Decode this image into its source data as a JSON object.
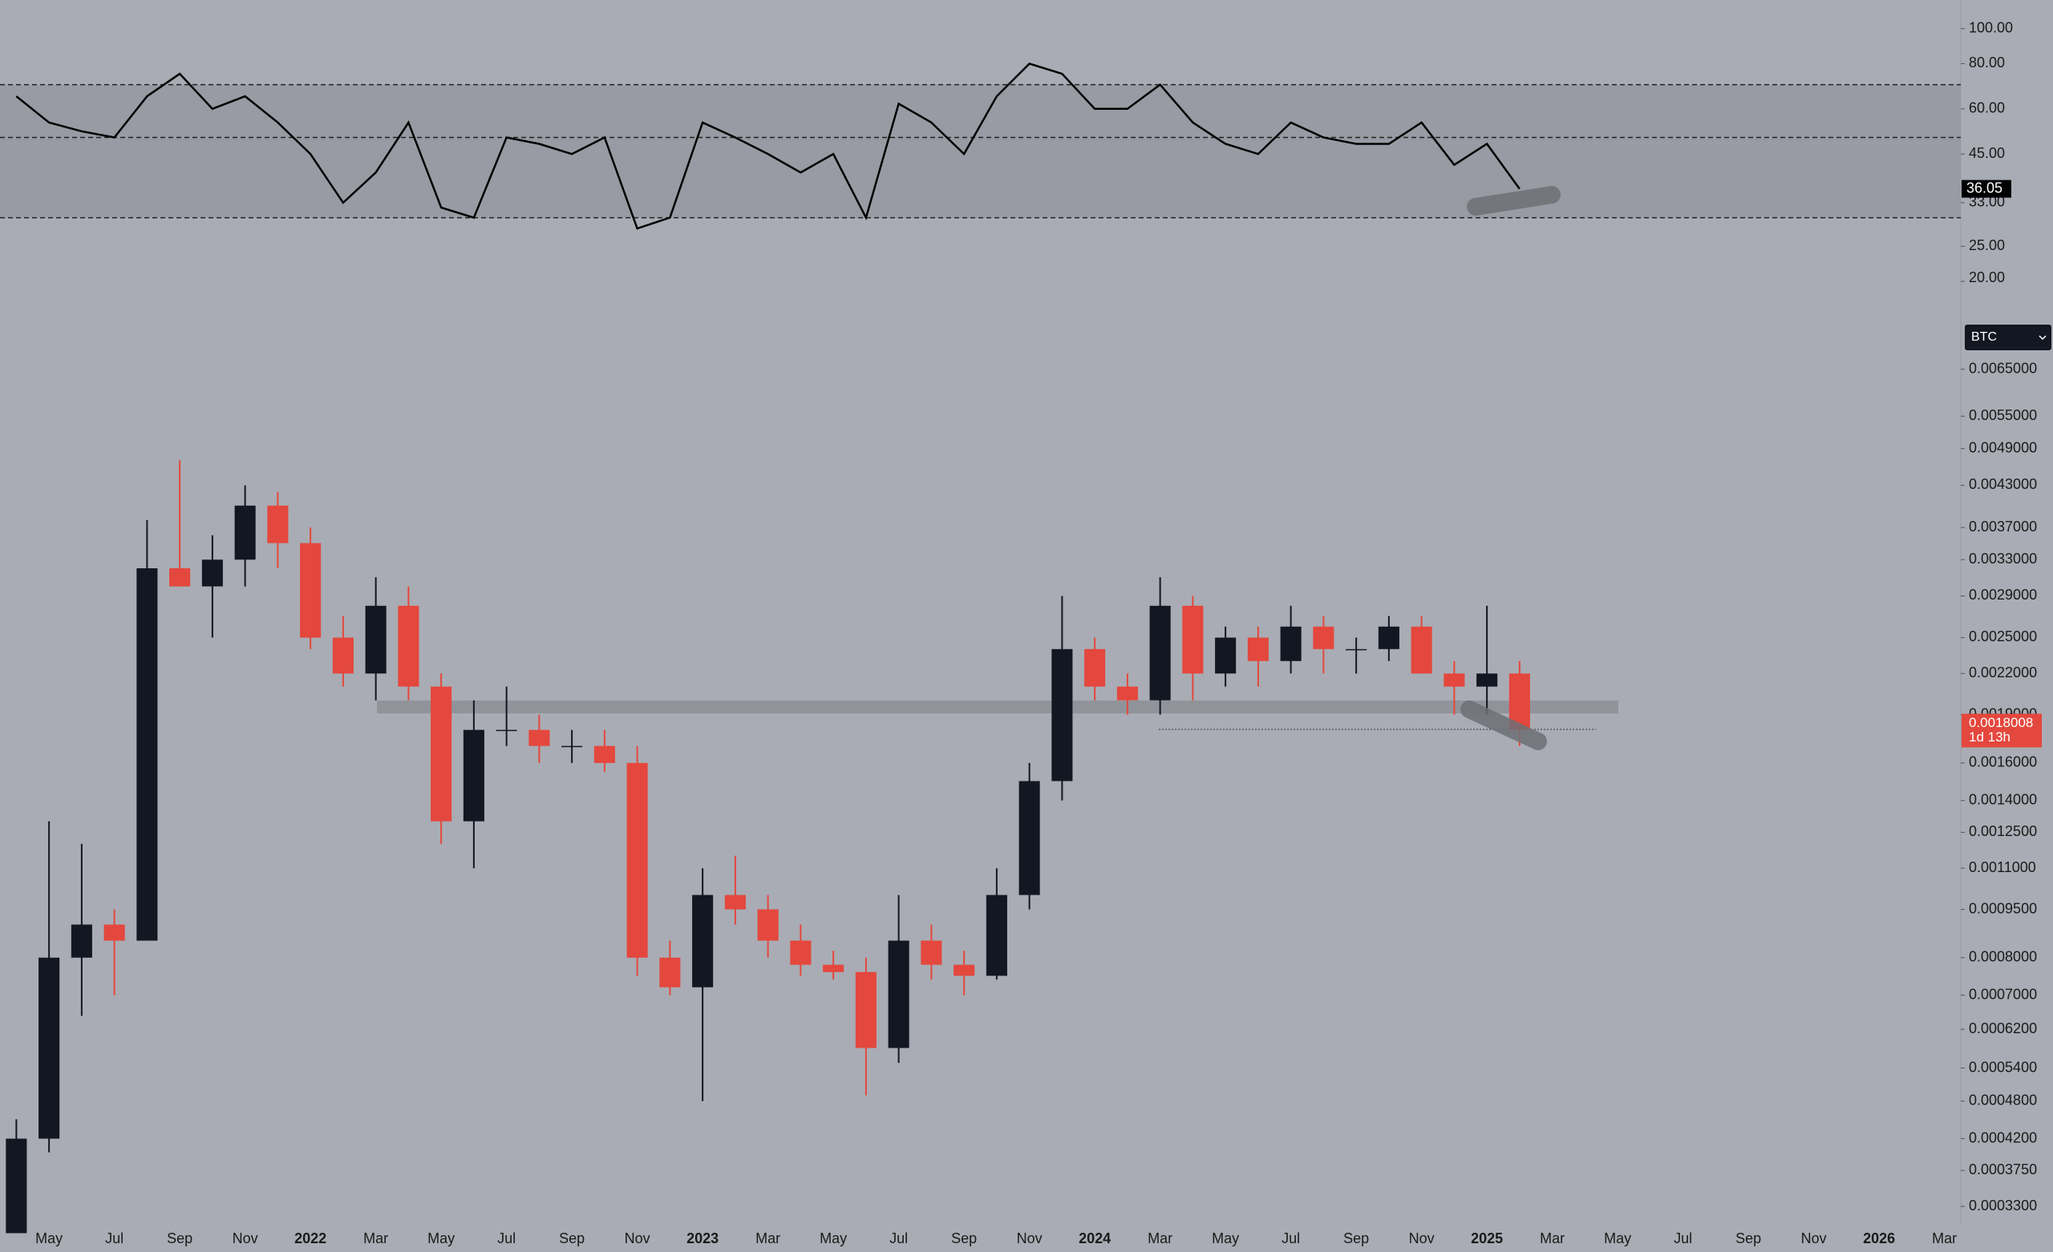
{
  "chart_data": [
    {
      "type": "line",
      "scale": "log",
      "color": "#000000",
      "band_color": "#989ba3",
      "ylim": [
        20,
        120
      ],
      "yticks": [
        {
          "value": 100,
          "label": "100.00"
        },
        {
          "value": 80,
          "label": "80.00"
        },
        {
          "value": 60,
          "label": "60.00"
        },
        {
          "value": 45,
          "label": "45.00"
        },
        {
          "value": 33,
          "label": "33.00"
        },
        {
          "value": 25,
          "label": "25.00"
        },
        {
          "value": 20,
          "label": "20.00"
        }
      ],
      "levels": [
        30,
        50,
        70
      ],
      "values": [
        65,
        55,
        52,
        50,
        65,
        75,
        60,
        65,
        55,
        45,
        33,
        40,
        55,
        32,
        30,
        50,
        48,
        45,
        50,
        28,
        30,
        55,
        50,
        45,
        40,
        45,
        30,
        62,
        55,
        45,
        65,
        80,
        75,
        60,
        60,
        70,
        55,
        48,
        45,
        55,
        50,
        48,
        48,
        55,
        42,
        48,
        36.05,
        null,
        null,
        null,
        null,
        null,
        null,
        null,
        null,
        null,
        null,
        null,
        null,
        null
      ]
    },
    {
      "type": "candlestick",
      "scale": "log",
      "up_color": "#131722",
      "down_color": "#e4473d",
      "symbol": "BTC",
      "countdown": "1d 13h",
      "ylim": [
        0.00031,
        0.0083
      ],
      "yticks": [
        {
          "value": 0.0065,
          "label": "0.0065000"
        },
        {
          "value": 0.0055,
          "label": "0.0055000"
        },
        {
          "value": 0.0049,
          "label": "0.0049000"
        },
        {
          "value": 0.0043,
          "label": "0.0043000"
        },
        {
          "value": 0.0037,
          "label": "0.0037000"
        },
        {
          "value": 0.0033,
          "label": "0.0033000"
        },
        {
          "value": 0.0029,
          "label": "0.0029000"
        },
        {
          "value": 0.0025,
          "label": "0.0025000"
        },
        {
          "value": 0.0022,
          "label": "0.0022000"
        },
        {
          "value": 0.0019,
          "label": "0.0019000"
        },
        {
          "value": 0.0016,
          "label": "0.0016000"
        },
        {
          "value": 0.0014,
          "label": "0.0014000"
        },
        {
          "value": 0.00125,
          "label": "0.0012500"
        },
        {
          "value": 0.0011,
          "label": "0.0011000"
        },
        {
          "value": 0.00095,
          "label": "0.0009500"
        },
        {
          "value": 0.0008,
          "label": "0.0008000"
        },
        {
          "value": 0.0007,
          "label": "0.0007000"
        },
        {
          "value": 0.00062,
          "label": "0.0006200"
        },
        {
          "value": 0.00054,
          "label": "0.0005400"
        },
        {
          "value": 0.00048,
          "label": "0.0004800"
        },
        {
          "value": 0.00042,
          "label": "0.0004200"
        },
        {
          "value": 0.000375,
          "label": "0.0003750"
        },
        {
          "value": 0.00033,
          "label": "0.0003300"
        }
      ],
      "categories": [
        null,
        "May",
        null,
        "Jul",
        null,
        "Sep",
        null,
        "Nov",
        null,
        "2022",
        null,
        "Mar",
        null,
        "May",
        null,
        "Jul",
        null,
        "Sep",
        null,
        "Nov",
        null,
        "2023",
        null,
        "Mar",
        null,
        "May",
        null,
        "Jul",
        null,
        "Sep",
        null,
        "Nov",
        null,
        "2024",
        null,
        "Mar",
        null,
        "May",
        null,
        "Jul",
        null,
        "Sep",
        null,
        "Nov",
        null,
        "2025",
        null,
        "Mar",
        null,
        "May",
        null,
        "Jul",
        null,
        "Sep",
        null,
        "Nov",
        null,
        "2026",
        null,
        "Mar"
      ],
      "open": [
        0.0003,
        0.00042,
        0.0008,
        0.0009,
        0.00085,
        0.0032,
        0.003,
        0.0033,
        0.004,
        0.0035,
        0.0025,
        0.0022,
        0.0028,
        0.0021,
        0.0013,
        0.0018,
        0.0018,
        0.0017,
        0.0017,
        0.0016,
        0.0008,
        0.00072,
        0.001,
        0.00095,
        0.00085,
        0.00078,
        0.00076,
        0.00058,
        0.00085,
        0.00078,
        0.00075,
        0.001,
        0.0015,
        0.0024,
        0.0021,
        0.002,
        0.0028,
        0.0022,
        0.0025,
        0.0023,
        0.0026,
        0.0024,
        0.0024,
        0.0026,
        0.0022,
        0.0021,
        0.0022,
        null,
        null,
        null,
        null,
        null,
        null,
        null,
        null,
        null,
        null,
        null,
        null,
        null
      ],
      "high": [
        0.00045,
        0.0013,
        0.0012,
        0.00095,
        0.0038,
        0.0047,
        0.0036,
        0.0043,
        0.0042,
        0.0037,
        0.0027,
        0.0031,
        0.003,
        0.0022,
        0.002,
        0.0021,
        0.0019,
        0.0018,
        0.0018,
        0.0017,
        0.00085,
        0.0011,
        0.00115,
        0.001,
        0.0009,
        0.00082,
        0.0008,
        0.001,
        0.0009,
        0.00082,
        0.0011,
        0.0016,
        0.0029,
        0.0025,
        0.0022,
        0.0031,
        0.0029,
        0.0026,
        0.0026,
        0.0028,
        0.0027,
        0.0025,
        0.0027,
        0.0027,
        0.0023,
        0.0028,
        0.0023,
        null,
        null,
        null,
        null,
        null,
        null,
        null,
        null,
        null,
        null,
        null,
        null,
        null
      ],
      "low": [
        0.0003,
        0.0004,
        0.00065,
        0.0007,
        0.00085,
        0.003,
        0.0025,
        0.003,
        0.0032,
        0.0024,
        0.0021,
        0.002,
        0.002,
        0.0012,
        0.0011,
        0.0017,
        0.0016,
        0.0016,
        0.00155,
        0.00075,
        0.0007,
        0.00048,
        0.0009,
        0.0008,
        0.00075,
        0.00074,
        0.00049,
        0.00055,
        0.00074,
        0.0007,
        0.00074,
        0.00095,
        0.0014,
        0.002,
        0.0019,
        0.0019,
        0.002,
        0.0021,
        0.0021,
        0.0022,
        0.0022,
        0.0022,
        0.0023,
        0.0022,
        0.0019,
        0.0019,
        0.0017,
        null,
        null,
        null,
        null,
        null,
        null,
        null,
        null,
        null,
        null,
        null,
        null,
        null
      ],
      "close": [
        0.00042,
        0.0008,
        0.0009,
        0.00085,
        0.0032,
        0.003,
        0.0033,
        0.004,
        0.0035,
        0.0025,
        0.0022,
        0.0028,
        0.0021,
        0.0013,
        0.0018,
        0.0018,
        0.0017,
        0.0017,
        0.0016,
        0.0008,
        0.00072,
        0.001,
        0.00095,
        0.00085,
        0.00078,
        0.00076,
        0.00058,
        0.00085,
        0.00078,
        0.00075,
        0.001,
        0.0015,
        0.0024,
        0.0021,
        0.002,
        0.0028,
        0.0022,
        0.0025,
        0.0023,
        0.0026,
        0.0024,
        0.0024,
        0.0026,
        0.0022,
        0.0021,
        0.0022,
        0.0018008,
        null,
        null,
        null,
        null,
        null,
        null,
        null,
        null,
        null,
        null,
        null,
        null,
        null
      ]
    }
  ]
}
